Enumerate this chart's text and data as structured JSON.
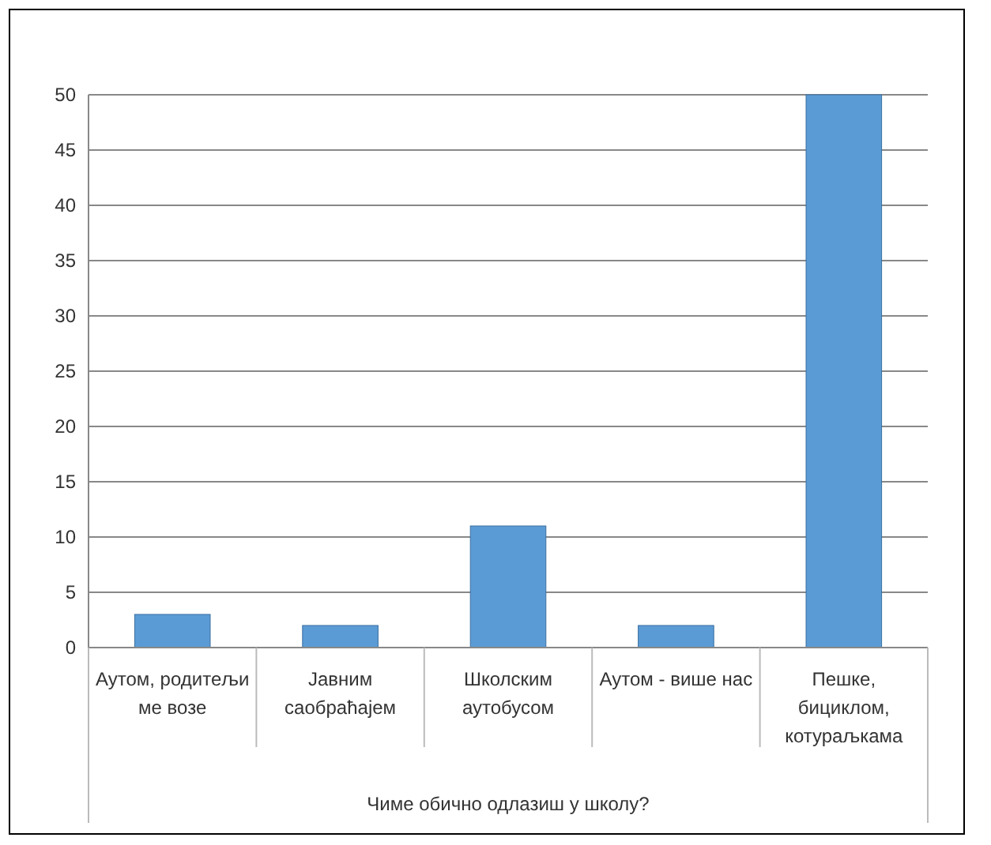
{
  "chart_data": {
    "type": "bar",
    "xlabel": "Чиме обично одлазиш у школу?",
    "categories": [
      "Аутом, родитељи ме возе",
      "Јавним саобраћајем",
      "Школским аутобусом",
      "Аутом - више нас",
      "Пешке, бициклом, котураљкама"
    ],
    "values": [
      3,
      2,
      11,
      2,
      50
    ],
    "color": "#5b9bd5",
    "ylim": [
      0,
      50
    ],
    "yticks": [
      0,
      5,
      10,
      15,
      20,
      25,
      30,
      35,
      40,
      45,
      50
    ],
    "grid": "y"
  }
}
